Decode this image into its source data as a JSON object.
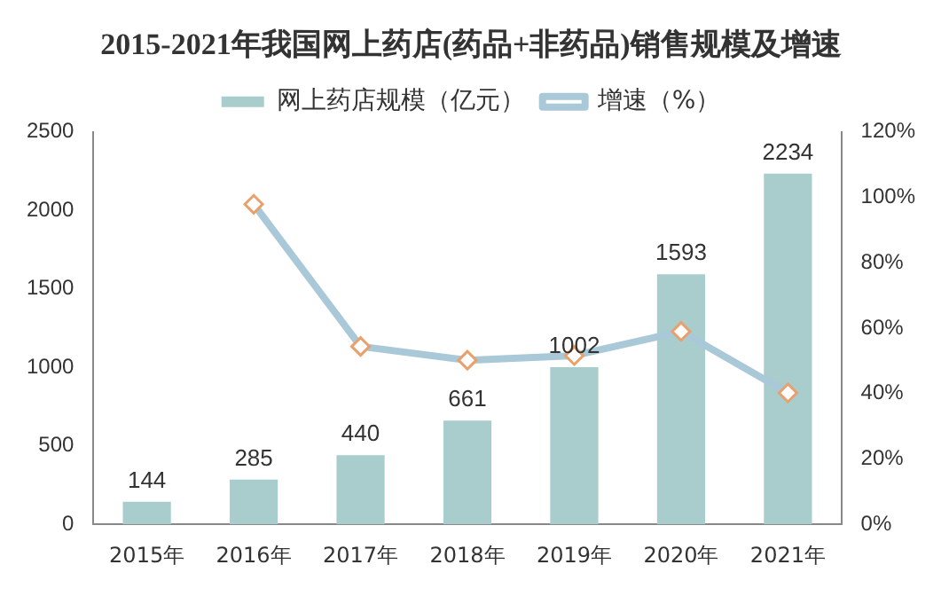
{
  "chart_data": {
    "type": "bar",
    "title": "2015-2021年我国网上药店(药品+非药品)销售规模及增速",
    "categories": [
      "2015年",
      "2016年",
      "2017年",
      "2018年",
      "2019年",
      "2020年",
      "2021年"
    ],
    "series": [
      {
        "name": "网上药店规模（亿元）",
        "color": "#a9cccc",
        "values": [
          144,
          285,
          440,
          661,
          1002,
          1593,
          2234
        ],
        "value_labels": [
          "144",
          "285",
          "440",
          "661",
          "1002",
          "1593",
          "2234"
        ]
      },
      {
        "name": "增速（%）",
        "type": "line",
        "axis": "y2",
        "color": "#a9c8d8",
        "marker": "diamond",
        "values": [
          null,
          97.9,
          54.4,
          50.2,
          51.6,
          59.0,
          40.2
        ]
      }
    ],
    "ylim": [
      0,
      2500
    ],
    "yticks": [
      0,
      500,
      1000,
      1500,
      2000,
      2500
    ],
    "y2lim": [
      0,
      120
    ],
    "y2ticks": [
      {
        "value": 0,
        "label": "0%"
      },
      {
        "value": 20,
        "label": "20%"
      },
      {
        "value": 40,
        "label": "40%"
      },
      {
        "value": 60,
        "label": "60%"
      },
      {
        "value": 80,
        "label": "80%"
      },
      {
        "value": 100,
        "label": "100%"
      },
      {
        "value": 120,
        "label": "120%"
      }
    ],
    "grid": false,
    "legend": "top"
  }
}
